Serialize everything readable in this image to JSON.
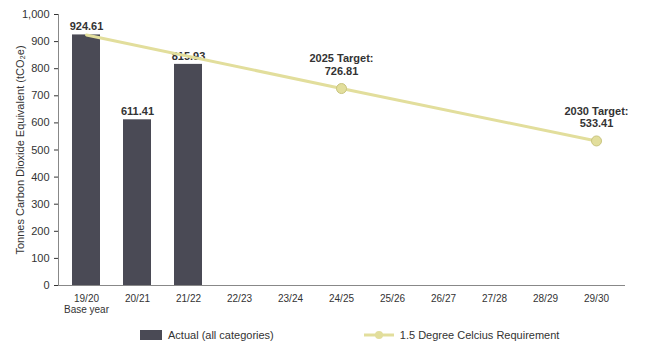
{
  "chart_data": {
    "type": "bar",
    "y_label": "Tonnes Carbon Dioxide Equivalent (tCO₂e)",
    "categories": [
      "19/20\nBase year",
      "20/21",
      "21/22",
      "22/23",
      "23/24",
      "24/25",
      "25/26",
      "26/27",
      "27/28",
      "28/29",
      "29/30"
    ],
    "ylim": [
      0,
      1000
    ],
    "yticks": [
      0,
      100,
      200,
      300,
      400,
      500,
      600,
      700,
      800,
      900,
      1000
    ],
    "grid": false,
    "legend": "bottom",
    "series": [
      {
        "name": "Actual (all categories)",
        "type": "bar",
        "color": "#4a4a55",
        "data_labels": true,
        "values": [
          924.61,
          611.41,
          815.93,
          null,
          null,
          null,
          null,
          null,
          null,
          null,
          null
        ]
      },
      {
        "name": "1.5 Degree Celcius Requirement",
        "type": "line",
        "color": "#e2de9c",
        "marker": "circle",
        "x": [
          "19/20\nBase year",
          "24/25",
          "29/30"
        ],
        "values": [
          924.61,
          726.81,
          533.41
        ]
      }
    ],
    "annotations": [
      {
        "text": "2025 Target:",
        "x": "24/25",
        "value": 726.81
      },
      {
        "text": "2030 Target:",
        "x": "29/30",
        "value": 533.41
      }
    ]
  }
}
